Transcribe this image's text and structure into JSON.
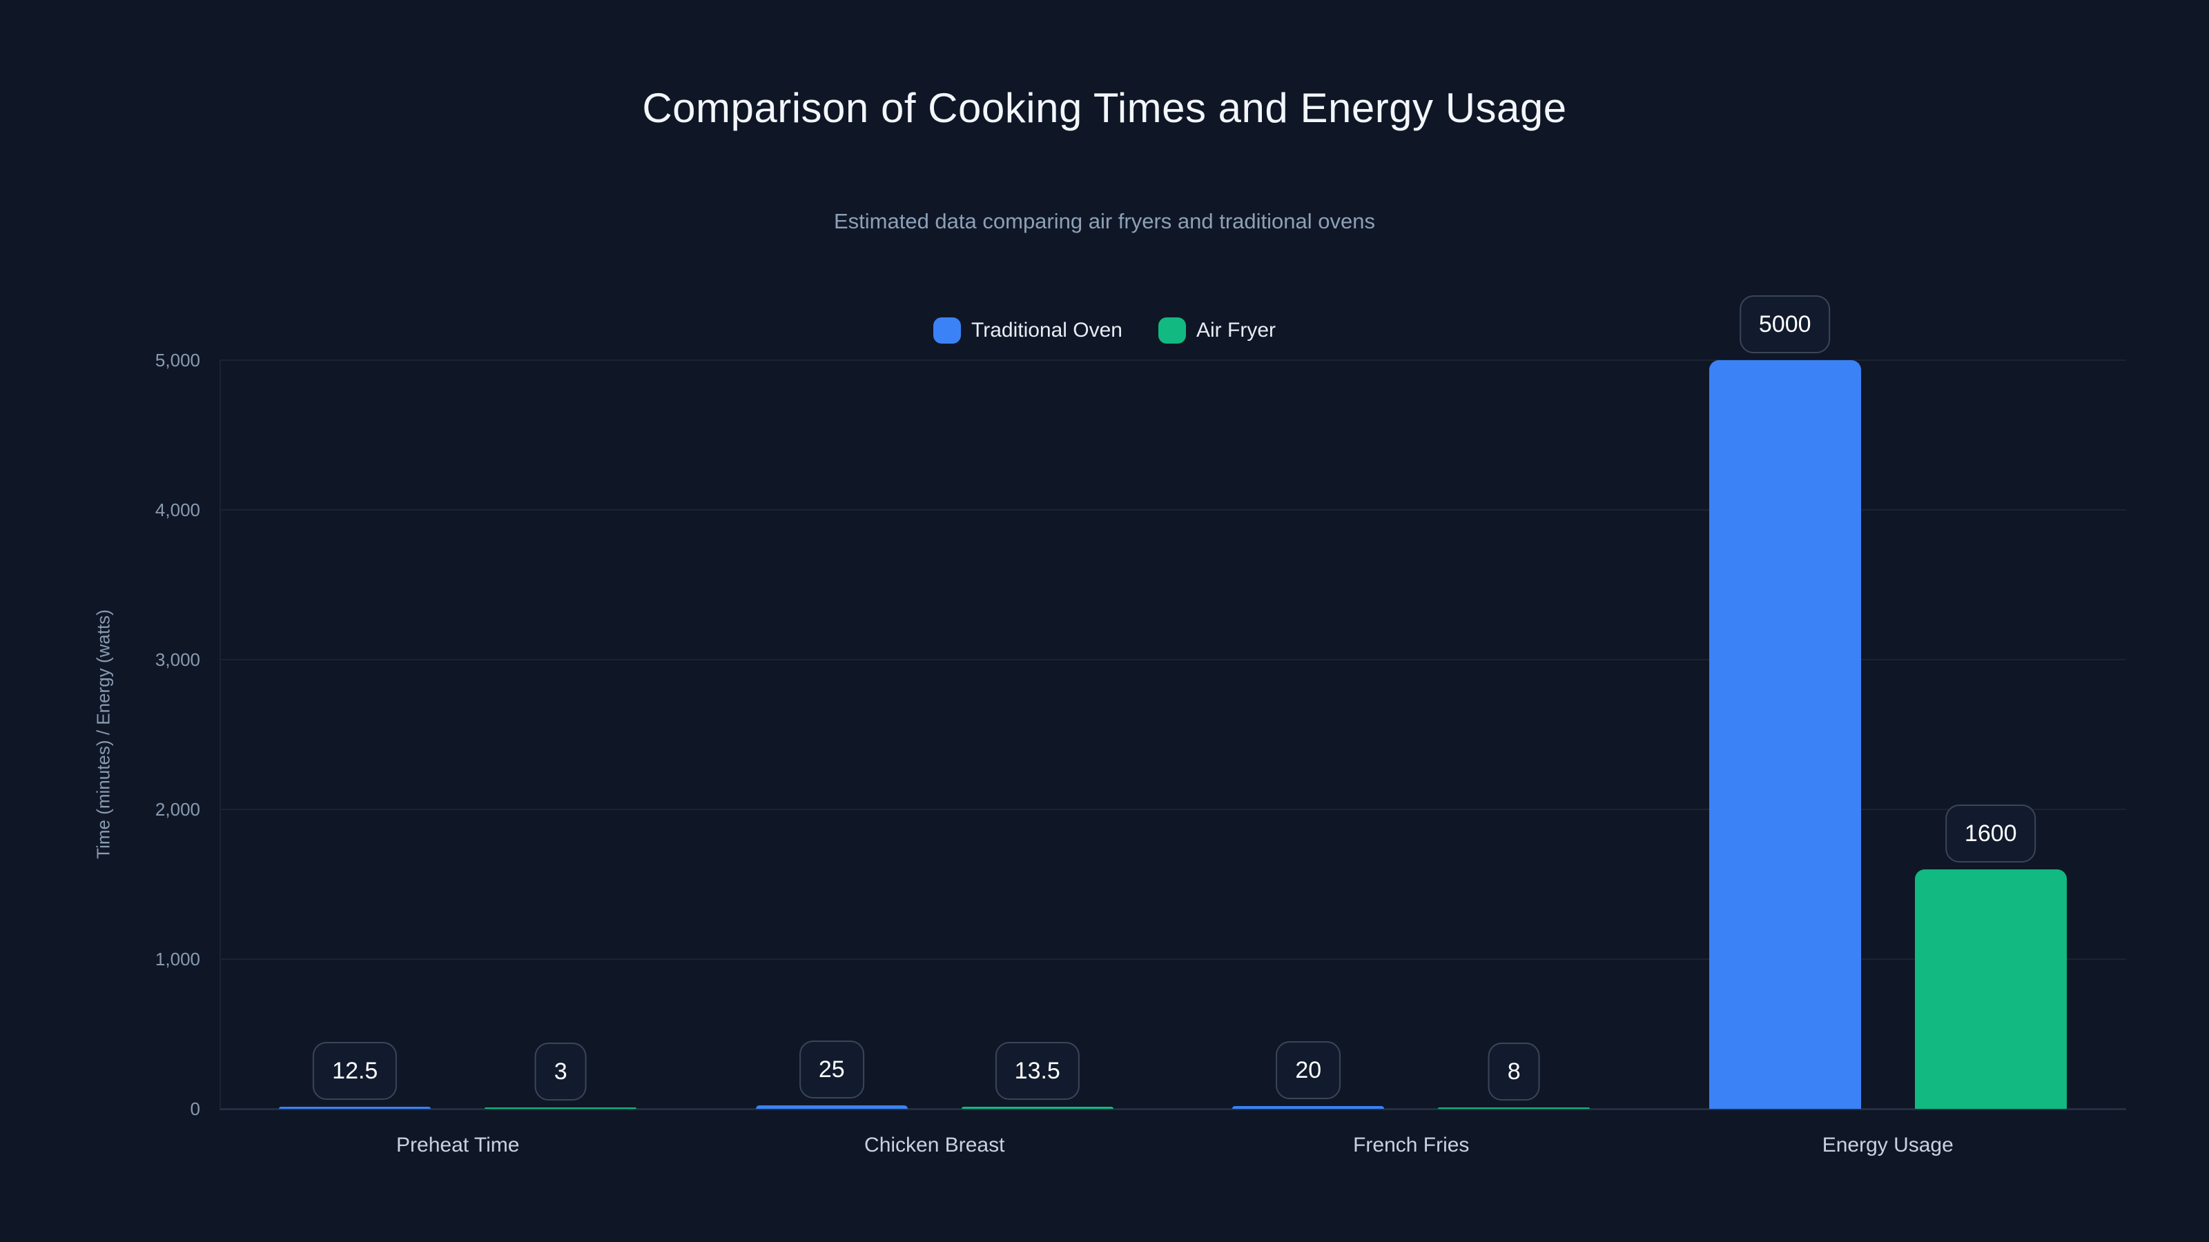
{
  "page": {
    "title": "Comparison of Cooking Times and Energy Usage",
    "subtitle": "Estimated data comparing air fryers and traditional ovens"
  },
  "chart_data": {
    "type": "bar",
    "title": "Comparison of Cooking Times and Energy Usage",
    "subtitle": "Estimated data comparing air fryers and traditional ovens",
    "categories": [
      "Preheat Time",
      "Chicken Breast",
      "French Fries",
      "Energy Usage"
    ],
    "series": [
      {
        "name": "Traditional Oven",
        "color": "#3b82f6",
        "values": [
          12.5,
          25,
          20,
          5000
        ]
      },
      {
        "name": "Air Fryer",
        "color": "#12b981",
        "values": [
          3,
          13.5,
          8,
          1600
        ]
      }
    ],
    "value_labels": [
      [
        "12.5",
        "25",
        "20",
        "5000"
      ],
      [
        "3",
        "13.5",
        "8",
        "1600"
      ]
    ],
    "ylabel": "Time (minutes) / Energy (watts)",
    "xlabel": "",
    "ylim": [
      0,
      5000
    ],
    "yticks": [
      {
        "value": 0,
        "label": "0"
      },
      {
        "value": 1000,
        "label": "1,000"
      },
      {
        "value": 2000,
        "label": "2,000"
      },
      {
        "value": 3000,
        "label": "3,000"
      },
      {
        "value": 4000,
        "label": "4,000"
      },
      {
        "value": 5000,
        "label": "5,000"
      }
    ],
    "grid": true,
    "legend_position": "top"
  },
  "colors": {
    "background": "#0f1727",
    "title_text": "#f3f6fa",
    "subtitle_text": "#8da0b6",
    "tick_text": "#8a9bb0",
    "x_label_text": "#c9d3e0",
    "legend_text": "#e8edf4",
    "gridline": "#1c2434",
    "axis_line": "#242f42",
    "pill_border": "#3a4557",
    "pill_background": "#111b2d",
    "pill_text": "#ffffff"
  }
}
